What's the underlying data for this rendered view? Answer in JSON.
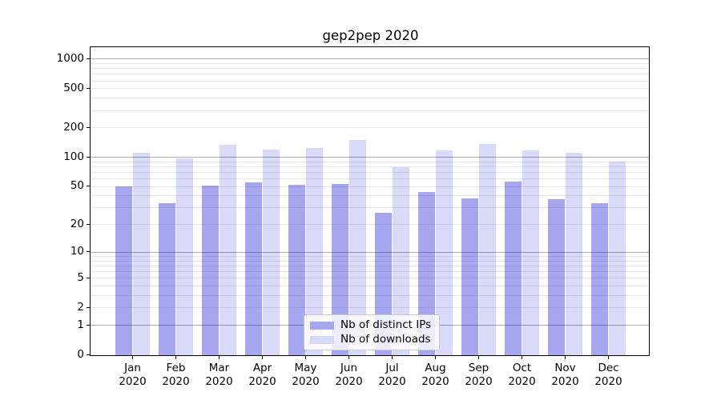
{
  "chart_data": {
    "type": "bar",
    "title": "gep2pep 2020",
    "categories": [
      "Jan 2020",
      "Feb 2020",
      "Mar 2020",
      "Apr 2020",
      "May 2020",
      "Jun 2020",
      "Jul 2020",
      "Aug 2020",
      "Sep 2020",
      "Oct 2020",
      "Nov 2020",
      "Dec 2020"
    ],
    "series": [
      {
        "name": "Nb of distinct IPs",
        "color": "#a7a7f0",
        "values": [
          50,
          34,
          51,
          56,
          52,
          53,
          27,
          44,
          38,
          57,
          37,
          34
        ]
      },
      {
        "name": "Nb of downloads",
        "color": "#d9d9f8",
        "values": [
          112,
          97,
          135,
          120,
          126,
          150,
          80,
          118,
          138,
          119,
          112,
          90
        ]
      }
    ],
    "yscale": "log10(value+1)",
    "ytick_labels": [
      "1000",
      "500",
      "200",
      "100",
      "50",
      "20",
      "10",
      "5",
      "2",
      "1",
      "0"
    ],
    "ytick_values": [
      1000,
      500,
      200,
      100,
      50,
      20,
      10,
      5,
      2,
      1,
      0
    ],
    "ylim": [
      0,
      1300
    ],
    "grid": "major dark at 1,10,100,1000; minor light at 2-9 per decade",
    "legend_position": "lower center inside plot"
  },
  "colors": {
    "background": "#ffffff",
    "series_ips": "#a7a7f0",
    "series_downloads": "#d9d9f8",
    "axis": "#000000",
    "grid_major": "#b0b0b0",
    "grid_minor": "#e8e8e8",
    "legend_border": "#cbcbcb",
    "text": "#000000"
  }
}
